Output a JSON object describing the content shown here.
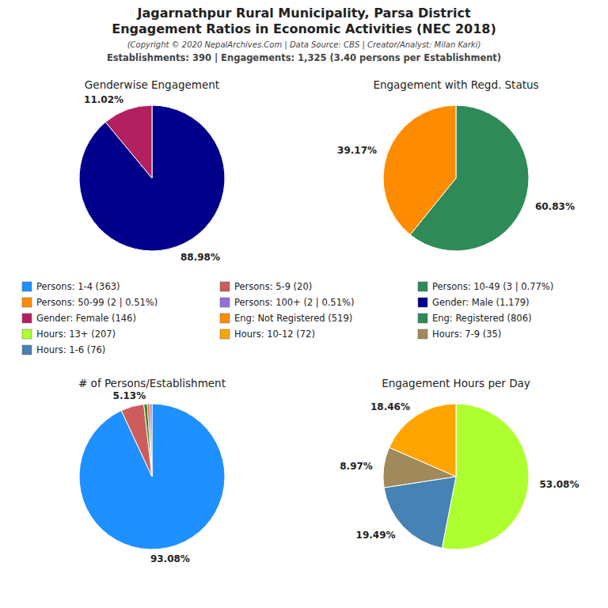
{
  "title": "Jagarnathpur Rural Municipality, Parsa District",
  "subtitle": "Engagement Ratios in Economic Activities (NEC 2018)",
  "annotations": [
    "(Copyright © 2020 NepalArchives.Com | Data Source: CBS | Creator/Analyst: Milan Karki)",
    "Establishments: 390 | Engagements: 1,325 (3.40 persons per Establishment)"
  ],
  "legend_entries": [
    {
      "name": "Persons: 1-4 (363)",
      "color": "#1E90FF"
    },
    {
      "name": "Persons: 5-9 (20)",
      "color": "#CD5C5C"
    },
    {
      "name": "Persons: 10-49 (3 | 0.77%)",
      "color": "#2E8B57"
    },
    {
      "name": "Persons: 50-99 (2 | 0.51%)",
      "color": "#FF8C00"
    },
    {
      "name": "Persons: 100+ (2 | 0.51%)",
      "color": "#9370DB"
    },
    {
      "name": "Gender: Male (1,179)",
      "color": "#00008B"
    },
    {
      "name": "Gender: Female (146)",
      "color": "#B22060"
    },
    {
      "name": "Eng: Not Registered (519)",
      "color": "#FF8C00"
    },
    {
      "name": "Eng: Registered (806)",
      "color": "#2E8B57"
    },
    {
      "name": "Hours: 13+ (207)",
      "color": "#ADFF2F"
    },
    {
      "name": "Hours: 10-12 (72)",
      "color": "#FFA500"
    },
    {
      "name": "Hours: 7-9 (35)",
      "color": "#A0895A"
    },
    {
      "name": "Hours: 1-6 (76)",
      "color": "#4682B4"
    }
  ],
  "chart_data": [
    {
      "type": "pie",
      "title": "Genderwise Engagement",
      "values": [
        88.98,
        11.02
      ],
      "value_labels": [
        "88.98%",
        "11.02%"
      ],
      "colors": [
        "#00008B",
        "#B22060"
      ],
      "data_labels": true
    },
    {
      "type": "pie",
      "title": "Engagement with Regd. Status",
      "values": [
        60.83,
        39.17
      ],
      "value_labels": [
        "60.83%",
        "39.17%"
      ],
      "colors": [
        "#2E8B57",
        "#FF8C00"
      ],
      "data_labels": true
    },
    {
      "type": "pie",
      "title": "# of Persons/Establishment",
      "values": [
        93.08,
        5.13,
        0.77,
        0.51,
        0.51
      ],
      "value_labels": [
        "93.08%",
        "5.13%",
        null,
        null,
        null
      ],
      "colors": [
        "#1E90FF",
        "#CD5C5C",
        "#228B22",
        "#FF4500",
        "#9370DB"
      ],
      "data_labels": true
    },
    {
      "type": "pie",
      "title": "Engagement Hours per Day",
      "values": [
        53.08,
        19.49,
        8.97,
        18.46
      ],
      "value_labels": [
        "53.08%",
        "19.49%",
        "8.97%",
        "18.46%"
      ],
      "colors": [
        "#ADFF2F",
        "#4682B4",
        "#A0895A",
        "#FFA500"
      ],
      "data_labels": true
    }
  ]
}
